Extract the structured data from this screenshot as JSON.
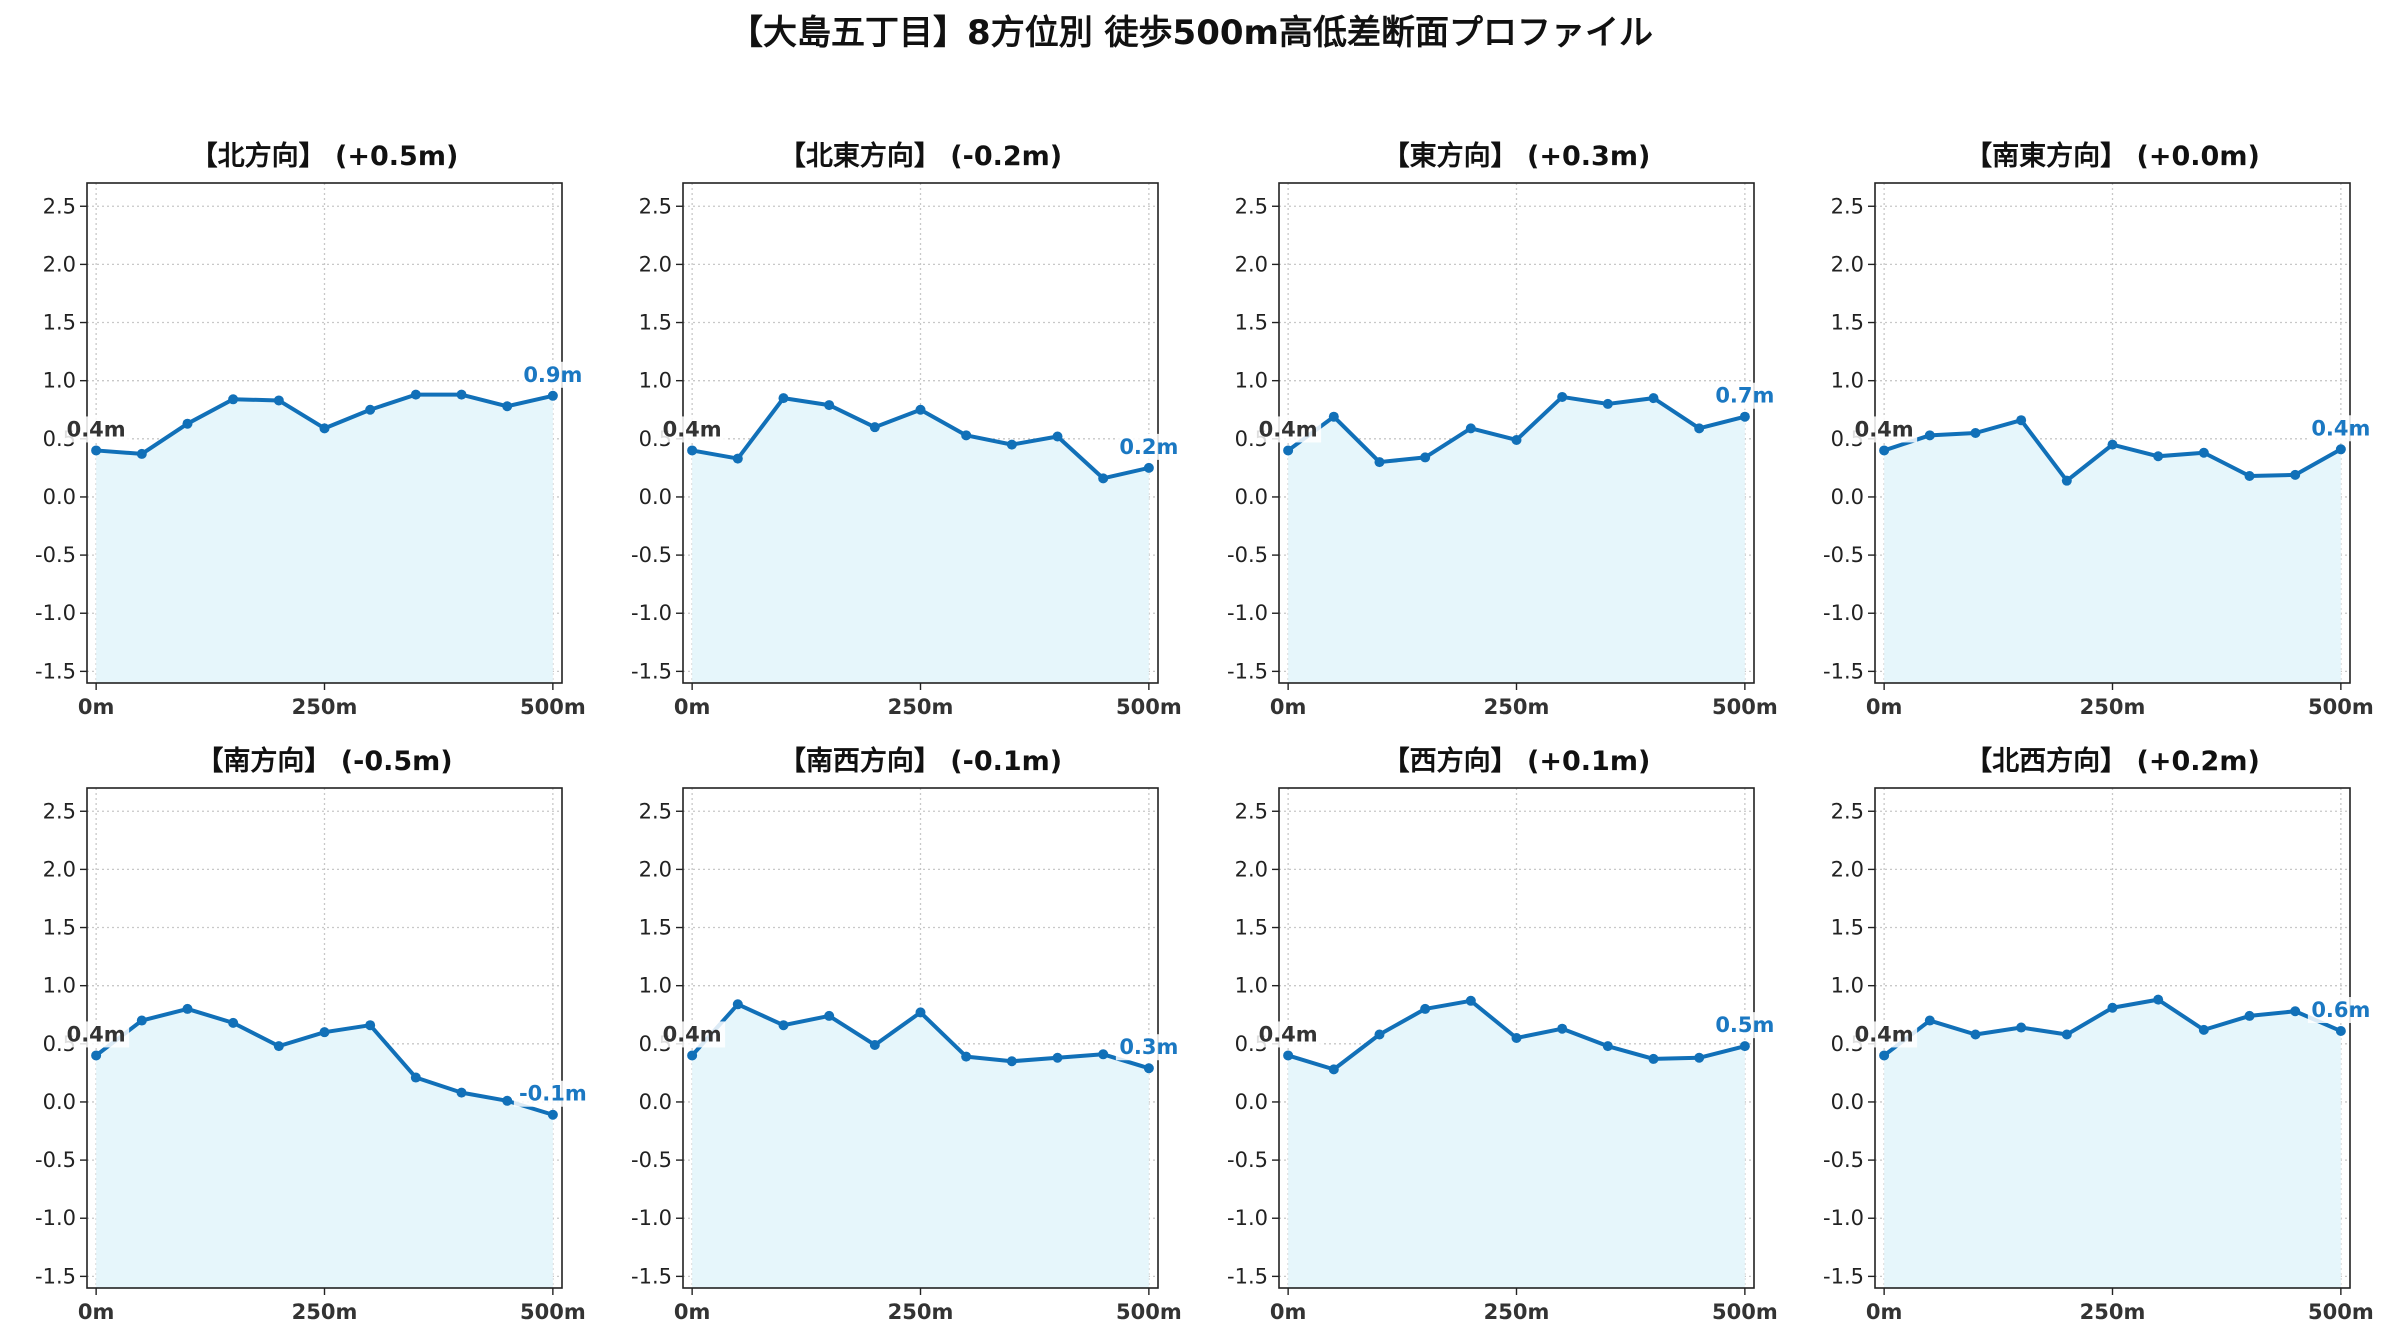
{
  "title": "【大島五丁目】8方位別 徒歩500m高低差断面プロファイル",
  "style": {
    "line_color": "#1170b8",
    "fill_color": "#e6f6fb",
    "grid_color": "#c8c8c8",
    "end_label_color": "#1b78c2",
    "start_label_color": "#333333"
  },
  "chart_data": [
    {
      "type": "line",
      "title": "【北方向】 (+0.5m)",
      "x": [
        0,
        50,
        100,
        150,
        200,
        250,
        300,
        350,
        400,
        450,
        500
      ],
      "y": [
        0.4,
        0.37,
        0.63,
        0.84,
        0.83,
        0.59,
        0.75,
        0.88,
        0.88,
        0.78,
        0.87
      ],
      "xticks": [
        "0m",
        "250m",
        "500m"
      ],
      "xtick_values": [
        0,
        250,
        500
      ],
      "yticks": [
        "-1.5",
        "-1.0",
        "-0.5",
        "0.0",
        "0.5",
        "1.0",
        "1.5",
        "2.0",
        "2.5"
      ],
      "ytick_values": [
        -1.5,
        -1.0,
        -0.5,
        0.0,
        0.5,
        1.0,
        1.5,
        2.0,
        2.5
      ],
      "xlim": [
        -10,
        510
      ],
      "ylim": [
        -1.6,
        2.7
      ],
      "start_label": "0.4m",
      "end_label": "0.9m",
      "grid": true
    },
    {
      "type": "line",
      "title": "【北東方向】 (-0.2m)",
      "x": [
        0,
        50,
        100,
        150,
        200,
        250,
        300,
        350,
        400,
        450,
        500
      ],
      "y": [
        0.4,
        0.33,
        0.85,
        0.79,
        0.6,
        0.75,
        0.53,
        0.45,
        0.52,
        0.16,
        0.25
      ],
      "xticks": [
        "0m",
        "250m",
        "500m"
      ],
      "xtick_values": [
        0,
        250,
        500
      ],
      "yticks": [
        "-1.5",
        "-1.0",
        "-0.5",
        "0.0",
        "0.5",
        "1.0",
        "1.5",
        "2.0",
        "2.5"
      ],
      "ytick_values": [
        -1.5,
        -1.0,
        -0.5,
        0.0,
        0.5,
        1.0,
        1.5,
        2.0,
        2.5
      ],
      "xlim": [
        -10,
        510
      ],
      "ylim": [
        -1.6,
        2.7
      ],
      "start_label": "0.4m",
      "end_label": "0.2m",
      "grid": true
    },
    {
      "type": "line",
      "title": "【東方向】 (+0.3m)",
      "x": [
        0,
        50,
        100,
        150,
        200,
        250,
        300,
        350,
        400,
        450,
        500
      ],
      "y": [
        0.4,
        0.69,
        0.3,
        0.34,
        0.59,
        0.49,
        0.86,
        0.8,
        0.85,
        0.59,
        0.69
      ],
      "xticks": [
        "0m",
        "250m",
        "500m"
      ],
      "xtick_values": [
        0,
        250,
        500
      ],
      "yticks": [
        "-1.5",
        "-1.0",
        "-0.5",
        "0.0",
        "0.5",
        "1.0",
        "1.5",
        "2.0",
        "2.5"
      ],
      "ytick_values": [
        -1.5,
        -1.0,
        -0.5,
        0.0,
        0.5,
        1.0,
        1.5,
        2.0,
        2.5
      ],
      "xlim": [
        -10,
        510
      ],
      "ylim": [
        -1.6,
        2.7
      ],
      "start_label": "0.4m",
      "end_label": "0.7m",
      "grid": true
    },
    {
      "type": "line",
      "title": "【南東方向】 (+0.0m)",
      "x": [
        0,
        50,
        100,
        150,
        200,
        250,
        300,
        350,
        400,
        450,
        500
      ],
      "y": [
        0.4,
        0.53,
        0.55,
        0.66,
        0.14,
        0.45,
        0.35,
        0.38,
        0.18,
        0.19,
        0.41
      ],
      "xticks": [
        "0m",
        "250m",
        "500m"
      ],
      "xtick_values": [
        0,
        250,
        500
      ],
      "yticks": [
        "-1.5",
        "-1.0",
        "-0.5",
        "0.0",
        "0.5",
        "1.0",
        "1.5",
        "2.0",
        "2.5"
      ],
      "ytick_values": [
        -1.5,
        -1.0,
        -0.5,
        0.0,
        0.5,
        1.0,
        1.5,
        2.0,
        2.5
      ],
      "xlim": [
        -10,
        510
      ],
      "ylim": [
        -1.6,
        2.7
      ],
      "start_label": "0.4m",
      "end_label": "0.4m",
      "grid": true
    },
    {
      "type": "line",
      "title": "【南方向】 (-0.5m)",
      "x": [
        0,
        50,
        100,
        150,
        200,
        250,
        300,
        350,
        400,
        450,
        500
      ],
      "y": [
        0.4,
        0.7,
        0.8,
        0.68,
        0.48,
        0.6,
        0.66,
        0.21,
        0.08,
        0.01,
        -0.11
      ],
      "xticks": [
        "0m",
        "250m",
        "500m"
      ],
      "xtick_values": [
        0,
        250,
        500
      ],
      "yticks": [
        "-1.5",
        "-1.0",
        "-0.5",
        "0.0",
        "0.5",
        "1.0",
        "1.5",
        "2.0",
        "2.5"
      ],
      "ytick_values": [
        -1.5,
        -1.0,
        -0.5,
        0.0,
        0.5,
        1.0,
        1.5,
        2.0,
        2.5
      ],
      "xlim": [
        -10,
        510
      ],
      "ylim": [
        -1.6,
        2.7
      ],
      "start_label": "0.4m",
      "end_label": "-0.1m",
      "grid": true
    },
    {
      "type": "line",
      "title": "【南西方向】 (-0.1m)",
      "x": [
        0,
        50,
        100,
        150,
        200,
        250,
        300,
        350,
        400,
        450,
        500
      ],
      "y": [
        0.4,
        0.84,
        0.66,
        0.74,
        0.49,
        0.77,
        0.39,
        0.35,
        0.38,
        0.41,
        0.29
      ],
      "xticks": [
        "0m",
        "250m",
        "500m"
      ],
      "xtick_values": [
        0,
        250,
        500
      ],
      "yticks": [
        "-1.5",
        "-1.0",
        "-0.5",
        "0.0",
        "0.5",
        "1.0",
        "1.5",
        "2.0",
        "2.5"
      ],
      "ytick_values": [
        -1.5,
        -1.0,
        -0.5,
        0.0,
        0.5,
        1.0,
        1.5,
        2.0,
        2.5
      ],
      "xlim": [
        -10,
        510
      ],
      "ylim": [
        -1.6,
        2.7
      ],
      "start_label": "0.4m",
      "end_label": "0.3m",
      "grid": true
    },
    {
      "type": "line",
      "title": "【西方向】 (+0.1m)",
      "x": [
        0,
        50,
        100,
        150,
        200,
        250,
        300,
        350,
        400,
        450,
        500
      ],
      "y": [
        0.4,
        0.28,
        0.58,
        0.8,
        0.87,
        0.55,
        0.63,
        0.48,
        0.37,
        0.38,
        0.48
      ],
      "xticks": [
        "0m",
        "250m",
        "500m"
      ],
      "xtick_values": [
        0,
        250,
        500
      ],
      "yticks": [
        "-1.5",
        "-1.0",
        "-0.5",
        "0.0",
        "0.5",
        "1.0",
        "1.5",
        "2.0",
        "2.5"
      ],
      "ytick_values": [
        -1.5,
        -1.0,
        -0.5,
        0.0,
        0.5,
        1.0,
        1.5,
        2.0,
        2.5
      ],
      "xlim": [
        -10,
        510
      ],
      "ylim": [
        -1.6,
        2.7
      ],
      "start_label": "0.4m",
      "end_label": "0.5m",
      "grid": true
    },
    {
      "type": "line",
      "title": "【北西方向】 (+0.2m)",
      "x": [
        0,
        50,
        100,
        150,
        200,
        250,
        300,
        350,
        400,
        450,
        500
      ],
      "y": [
        0.4,
        0.7,
        0.58,
        0.64,
        0.58,
        0.81,
        0.88,
        0.62,
        0.74,
        0.78,
        0.61
      ],
      "xticks": [
        "0m",
        "250m",
        "500m"
      ],
      "xtick_values": [
        0,
        250,
        500
      ],
      "yticks": [
        "-1.5",
        "-1.0",
        "-0.5",
        "0.0",
        "0.5",
        "1.0",
        "1.5",
        "2.0",
        "2.5"
      ],
      "ytick_values": [
        -1.5,
        -1.0,
        -0.5,
        0.0,
        0.5,
        1.0,
        1.5,
        2.0,
        2.5
      ],
      "xlim": [
        -10,
        510
      ],
      "ylim": [
        -1.6,
        2.7
      ],
      "start_label": "0.4m",
      "end_label": "0.6m",
      "grid": true
    }
  ]
}
